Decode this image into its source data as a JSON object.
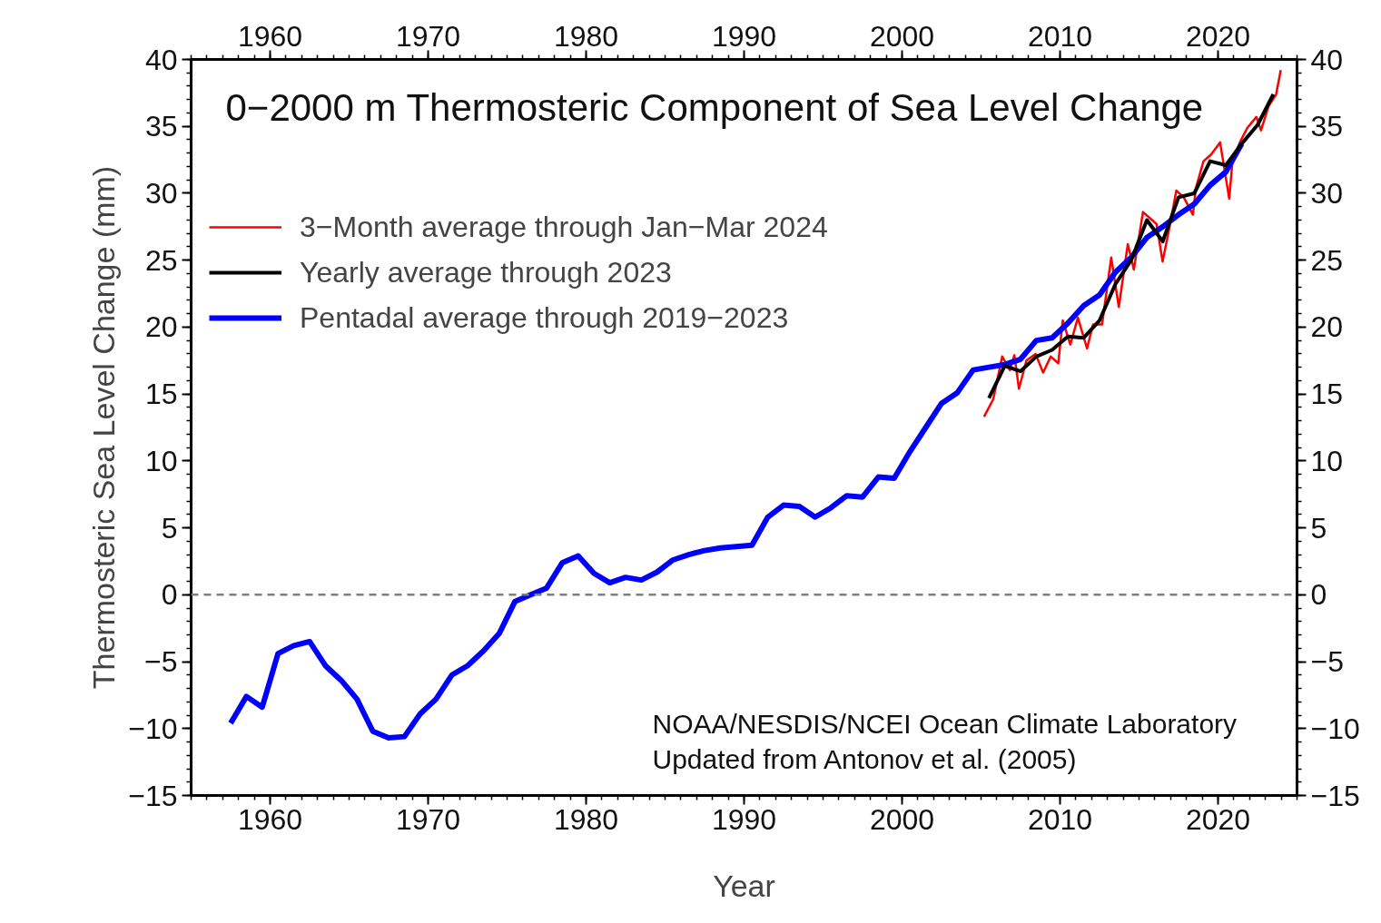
{
  "chart_data": {
    "type": "line",
    "title": "0−2000 m Thermosteric Component of Sea Level Change",
    "xlabel": "Year",
    "ylabel": "Thermosteric Sea Level Change (mm)",
    "xlim": [
      1955,
      2025
    ],
    "xticks": [
      1960,
      1970,
      1980,
      1990,
      2000,
      2010,
      2020
    ],
    "x2lim": [
      1955,
      2025
    ],
    "x2ticks": [
      1960,
      1970,
      1980,
      1990,
      2000,
      2010,
      2020
    ],
    "ylim": [
      -15,
      40
    ],
    "yticks": [
      {
        "value": -15,
        "label": "−15"
      },
      {
        "value": -10,
        "label": "−10"
      },
      {
        "value": -5,
        "label": "−5"
      },
      0,
      5,
      10,
      15,
      20,
      25,
      30,
      35,
      40
    ],
    "y2lim": [
      -15,
      40
    ],
    "y2ticks": [
      {
        "value": -15,
        "label": "−15"
      },
      {
        "value": -10,
        "label": "−10"
      },
      {
        "value": -5,
        "label": "−5"
      },
      0,
      5,
      10,
      15,
      20,
      25,
      30,
      35,
      40
    ],
    "grid": false,
    "legend": "top left",
    "line_style": "solid",
    "marker": "none",
    "ref_lines": [
      {
        "axis": "y",
        "value": 0,
        "color": "#808080",
        "line_style": "dashed"
      }
    ],
    "annotations": [
      "NOAA/NESDIS/NCEI Ocean Climate Laboratory",
      "Updated from Antonov et al. (2005)"
    ],
    "series": [
      {
        "name": "3−Month average through Jan−Mar 2024",
        "color": "#ff0000",
        "x": [
          2005.19,
          2005.77,
          2006.34,
          2006.82,
          2007.11,
          2007.4,
          2007.87,
          2008.45,
          2008.93,
          2009.41,
          2009.89,
          2010.17,
          2010.65,
          2011.13,
          2011.71,
          2012.09,
          2012.66,
          2013.24,
          2013.72,
          2014.29,
          2014.67,
          2015.25,
          2015.73,
          2016.11,
          2016.49,
          2016.97,
          2017.36,
          2017.83,
          2018.41,
          2018.6,
          2019.08,
          2019.56,
          2020.13,
          2020.71,
          2020.9,
          2021.38,
          2021.86,
          2022.43,
          2022.72,
          2023.2,
          2023.68,
          2023.97
        ],
        "values": [
          13.3,
          14.6,
          17.8,
          16.8,
          17.9,
          15.4,
          17.5,
          18.0,
          16.6,
          17.8,
          17.3,
          20.5,
          18.7,
          20.7,
          18.4,
          20.2,
          20.2,
          25.2,
          21.5,
          26.2,
          24.3,
          28.6,
          28.1,
          27.7,
          24.9,
          27.7,
          30.2,
          29.7,
          28.4,
          30.4,
          32.4,
          32.9,
          33.8,
          29.6,
          32.2,
          33.8,
          34.9,
          35.7,
          34.7,
          36.5,
          37.4,
          39.2
        ]
      },
      {
        "name": "Yearly average through 2023",
        "color": "#000000",
        "x": [
          2005.5,
          2006.5,
          2007.5,
          2008.5,
          2009.5,
          2010.5,
          2011.5,
          2012.5,
          2013.5,
          2014.5,
          2015.5,
          2016.5,
          2017.5,
          2018.5,
          2019.5,
          2020.5,
          2021.5,
          2022.5,
          2023.5
        ],
        "values": [
          14.7,
          17.1,
          16.7,
          17.8,
          18.3,
          19.3,
          19.2,
          20.5,
          23.2,
          25.0,
          28.0,
          26.4,
          29.7,
          30.0,
          32.4,
          32.1,
          33.7,
          35.1,
          37.4
        ]
      },
      {
        "name": "Pentadal average through 2019−2023",
        "color": "#0000ff",
        "x": [
          1957.5,
          1958.5,
          1959.5,
          1960.5,
          1961.5,
          1962.5,
          1963.5,
          1964.5,
          1965.5,
          1966.5,
          1967.5,
          1968.5,
          1969.5,
          1970.5,
          1971.5,
          1972.5,
          1973.5,
          1974.5,
          1975.5,
          1976.5,
          1977.5,
          1978.5,
          1979.5,
          1980.5,
          1981.5,
          1982.5,
          1983.5,
          1984.5,
          1985.5,
          1986.5,
          1987.5,
          1988.5,
          1989.5,
          1990.5,
          1991.5,
          1992.5,
          1993.5,
          1994.5,
          1995.5,
          1996.5,
          1997.5,
          1998.5,
          1999.5,
          2000.5,
          2001.5,
          2002.5,
          2003.5,
          2004.5,
          2005.5,
          2006.5,
          2007.5,
          2008.5,
          2009.5,
          2010.5,
          2011.5,
          2012.5,
          2013.5,
          2014.5,
          2015.5,
          2016.5,
          2017.5,
          2018.5,
          2019.5,
          2020.5,
          2021.5
        ],
        "values": [
          -9.6,
          -7.6,
          -8.4,
          -4.4,
          -3.8,
          -3.5,
          -5.3,
          -6.4,
          -7.8,
          -10.2,
          -10.7,
          -10.6,
          -8.9,
          -7.8,
          -6.0,
          -5.3,
          -4.2,
          -2.9,
          -0.5,
          0.0,
          0.5,
          2.4,
          2.9,
          1.6,
          0.9,
          1.3,
          1.1,
          1.7,
          2.6,
          3.0,
          3.3,
          3.5,
          3.6,
          3.7,
          5.8,
          6.7,
          6.6,
          5.8,
          6.5,
          7.4,
          7.3,
          8.8,
          8.7,
          10.7,
          12.5,
          14.3,
          15.1,
          16.8,
          17.0,
          17.2,
          17.6,
          19.0,
          19.2,
          20.3,
          21.6,
          22.4,
          24.1,
          25.2,
          26.7,
          27.5,
          28.4,
          29.2,
          30.6,
          31.6,
          33.7
        ]
      }
    ]
  }
}
